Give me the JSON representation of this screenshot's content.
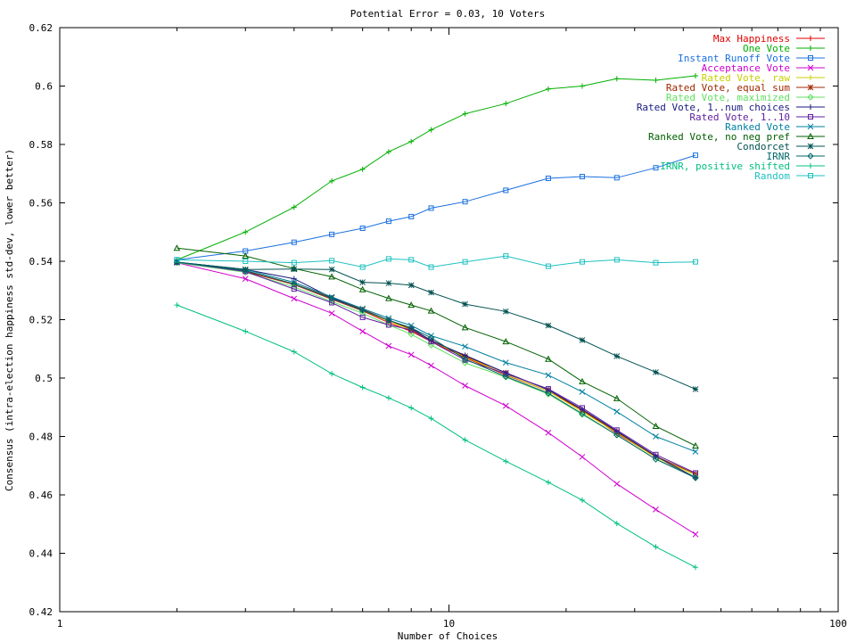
{
  "chart_data": {
    "type": "line",
    "title": "Potential Error = 0.03, 10 Voters",
    "xlabel": "Number of Choices",
    "ylabel": "Consensus (intra-election happiness std-dev, lower better)",
    "xscale": "log",
    "xlim": [
      1,
      100
    ],
    "ylim": [
      0.42,
      0.62
    ],
    "x_ticks": [
      "1",
      "10",
      "100"
    ],
    "y_ticks": [
      "0.42",
      "0.44",
      "0.46",
      "0.48",
      "0.5",
      "0.52",
      "0.54",
      "0.56",
      "0.58",
      "0.6",
      "0.62"
    ],
    "legend_position": "top-right",
    "x": [
      2,
      3,
      4,
      5,
      6,
      7,
      8,
      9,
      11,
      14,
      18,
      22,
      27,
      34,
      43
    ],
    "series": [
      {
        "name": "Max Happiness",
        "color": "#e00000",
        "marker": "plus",
        "values": [
          0.5395,
          0.5365,
          0.532,
          0.527,
          0.523,
          0.519,
          0.516,
          0.5125,
          0.507,
          0.501,
          0.4955,
          0.489,
          0.481,
          0.473,
          0.466
        ]
      },
      {
        "name": "One Vote",
        "color": "#00b000",
        "marker": "plus",
        "values": [
          0.5405,
          0.55,
          0.5585,
          0.5675,
          0.5715,
          0.5775,
          0.581,
          0.585,
          0.5905,
          0.594,
          0.599,
          0.6,
          0.6025,
          0.602,
          0.6035
        ]
      },
      {
        "name": "Instant Runoff Vote",
        "color": "#1a70e0",
        "marker": "square",
        "values": [
          0.5405,
          0.5435,
          0.5465,
          0.5492,
          0.5513,
          0.5537,
          0.5553,
          0.5582,
          0.5604,
          0.5643,
          0.5684,
          0.569,
          0.5686,
          0.572,
          0.5763
        ]
      },
      {
        "name": "Acceptance Vote",
        "color": "#d000d0",
        "marker": "x",
        "values": [
          0.5395,
          0.534,
          0.5272,
          0.5222,
          0.516,
          0.511,
          0.508,
          0.5043,
          0.4974,
          0.4905,
          0.4813,
          0.473,
          0.4638,
          0.455,
          0.4465
        ]
      },
      {
        "name": "Rated Vote, raw",
        "color": "#c8d000",
        "marker": "plus",
        "values": [
          0.5397,
          0.5368,
          0.5322,
          0.5272,
          0.5232,
          0.5195,
          0.5165,
          0.5128,
          0.5073,
          0.5012,
          0.4955,
          0.4885,
          0.4813,
          0.4728,
          0.4668
        ]
      },
      {
        "name": "Rated Vote, equal sum",
        "color": "#a02800",
        "marker": "star",
        "values": [
          0.5397,
          0.5368,
          0.5322,
          0.5275,
          0.5235,
          0.5198,
          0.5168,
          0.513,
          0.5075,
          0.5018,
          0.496,
          0.489,
          0.4816,
          0.4732,
          0.4672
        ]
      },
      {
        "name": "Rated Vote, maximized",
        "color": "#60e060",
        "marker": "diamond",
        "values": [
          0.5395,
          0.5362,
          0.5312,
          0.5262,
          0.5222,
          0.5182,
          0.515,
          0.5113,
          0.5052,
          0.5003,
          0.4945,
          0.4875,
          0.4805,
          0.4722,
          0.4662
        ]
      },
      {
        "name": "Rated Vote, 1..num choices",
        "color": "#1a1a80",
        "marker": "plus",
        "values": [
          0.5397,
          0.5372,
          0.534,
          0.5275,
          0.5232,
          0.5198,
          0.5172,
          0.5128,
          0.5078,
          0.5018,
          0.496,
          0.4893,
          0.4818,
          0.4733,
          0.4658
        ]
      },
      {
        "name": "Rated Vote, 1..10",
        "color": "#6020a0",
        "marker": "square",
        "values": [
          0.5397,
          0.5365,
          0.5305,
          0.5258,
          0.5208,
          0.5182,
          0.5165,
          0.5125,
          0.5062,
          0.5015,
          0.4963,
          0.4898,
          0.4822,
          0.4738,
          0.4675
        ]
      },
      {
        "name": "Ranked Vote",
        "color": "#0080a0",
        "marker": "x",
        "values": [
          0.5397,
          0.5372,
          0.5328,
          0.5278,
          0.5238,
          0.5205,
          0.518,
          0.5145,
          0.5108,
          0.5053,
          0.501,
          0.4953,
          0.4885,
          0.48,
          0.4748
        ]
      },
      {
        "name": "Ranked Vote, no neg pref",
        "color": "#006000",
        "marker": "triangle",
        "values": [
          0.5445,
          0.5418,
          0.5375,
          0.5347,
          0.5303,
          0.5273,
          0.525,
          0.523,
          0.5173,
          0.5125,
          0.5065,
          0.4988,
          0.493,
          0.4835,
          0.4768
        ]
      },
      {
        "name": "Condorcet",
        "color": "#005050",
        "marker": "star",
        "values": [
          0.5397,
          0.5372,
          0.5373,
          0.5372,
          0.5328,
          0.5325,
          0.5318,
          0.5293,
          0.5253,
          0.5228,
          0.518,
          0.513,
          0.5075,
          0.502,
          0.4962
        ]
      },
      {
        "name": "IRNR",
        "color": "#006868",
        "marker": "diamond",
        "values": [
          0.5397,
          0.5368,
          0.5322,
          0.5272,
          0.5232,
          0.5198,
          0.5172,
          0.5138,
          0.5065,
          0.5005,
          0.4948,
          0.4878,
          0.4805,
          0.4722,
          0.4658
        ]
      },
      {
        "name": "IRNR, positive shifted",
        "color": "#00c080",
        "marker": "plus",
        "values": [
          0.525,
          0.516,
          0.509,
          0.5015,
          0.4968,
          0.4932,
          0.4898,
          0.4862,
          0.4788,
          0.4715,
          0.4643,
          0.4582,
          0.4502,
          0.4422,
          0.4352
        ]
      },
      {
        "name": "Random",
        "color": "#20c0c0",
        "marker": "square",
        "values": [
          0.5405,
          0.54,
          0.5395,
          0.5402,
          0.538,
          0.5408,
          0.5405,
          0.538,
          0.5398,
          0.5418,
          0.5383,
          0.5398,
          0.5405,
          0.5395,
          0.5398
        ]
      }
    ]
  }
}
